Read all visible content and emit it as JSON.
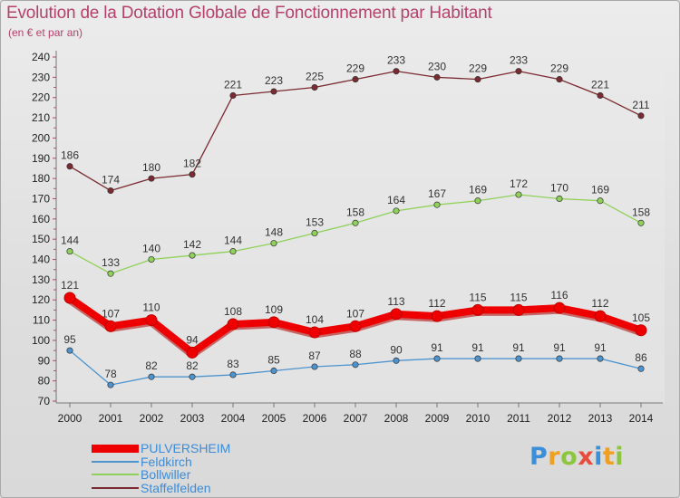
{
  "header": {
    "title": "Evolution de la Dotation Globale de Fonctionnement par Habitant",
    "subtitle": "(en € et par an)"
  },
  "logo": {
    "text": "Proxiti"
  },
  "chart_data": {
    "type": "line",
    "title": "Evolution de la Dotation Globale de Fonctionnement par Habitant",
    "subtitle": "(en € et par an)",
    "xlabel": "",
    "ylabel": "",
    "ylim": [
      70,
      240
    ],
    "ytick_step": 10,
    "grid": false,
    "legend_position": "bottom-left",
    "x": [
      "2000",
      "2001",
      "2002",
      "2003",
      "2004",
      "2005",
      "2006",
      "2007",
      "2008",
      "2009",
      "2010",
      "2011",
      "2012",
      "2013",
      "2014"
    ],
    "series": [
      {
        "name": "PULVERSHEIM",
        "color": "#ee0000",
        "emphasis": true,
        "values": [
          121,
          107,
          110,
          94,
          108,
          109,
          104,
          107,
          113,
          112,
          115,
          115,
          116,
          112,
          105
        ]
      },
      {
        "name": "Feldkirch",
        "color": "#4d94cf",
        "emphasis": false,
        "values": [
          95,
          78,
          82,
          82,
          83,
          85,
          87,
          88,
          90,
          91,
          91,
          91,
          91,
          91,
          86
        ]
      },
      {
        "name": "Bollwiller",
        "color": "#8fd159",
        "emphasis": false,
        "values": [
          144,
          133,
          140,
          142,
          144,
          148,
          153,
          158,
          164,
          167,
          169,
          172,
          170,
          169,
          158
        ]
      },
      {
        "name": "Staffelfelden",
        "color": "#7a2a30",
        "emphasis": false,
        "values": [
          186,
          174,
          180,
          182,
          221,
          223,
          225,
          229,
          233,
          230,
          229,
          233,
          229,
          221,
          211
        ]
      }
    ]
  }
}
